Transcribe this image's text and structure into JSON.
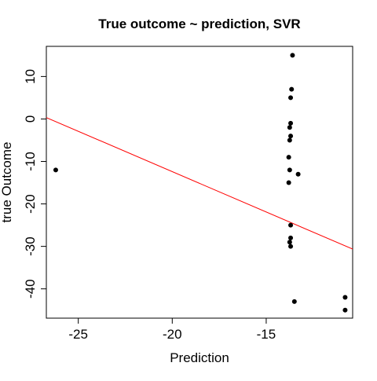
{
  "chart_data": {
    "type": "scatter",
    "title": "True outcome ~ prediction, SVR",
    "xlabel": "Prediction",
    "ylabel": "true Outcome",
    "xlim": [
      -26.7,
      -10.4
    ],
    "ylim": [
      -46.9,
      17.1
    ],
    "xticks": [
      -25,
      -20,
      -15
    ],
    "xtick_labels": [
      "-25",
      "-20",
      "-15"
    ],
    "yticks": [
      -40,
      -30,
      -20,
      -10,
      0,
      10
    ],
    "ytick_labels": [
      "-40",
      "-30",
      "-20",
      "-10",
      "0",
      "10"
    ],
    "grid": false,
    "legend": "none",
    "points": [
      {
        "x": -26.2,
        "y": -12
      },
      {
        "x": -13.6,
        "y": 15
      },
      {
        "x": -13.65,
        "y": 7
      },
      {
        "x": -13.7,
        "y": 5
      },
      {
        "x": -13.7,
        "y": -1
      },
      {
        "x": -13.75,
        "y": -2
      },
      {
        "x": -13.7,
        "y": -4
      },
      {
        "x": -13.75,
        "y": -5
      },
      {
        "x": -13.8,
        "y": -9
      },
      {
        "x": -13.75,
        "y": -12
      },
      {
        "x": -13.3,
        "y": -13
      },
      {
        "x": -13.8,
        "y": -15
      },
      {
        "x": -13.7,
        "y": -25
      },
      {
        "x": -13.7,
        "y": -28
      },
      {
        "x": -13.75,
        "y": -29
      },
      {
        "x": -13.7,
        "y": -30
      },
      {
        "x": -13.5,
        "y": -43
      },
      {
        "x": -10.8,
        "y": -42
      },
      {
        "x": -10.8,
        "y": -45
      }
    ],
    "regression_line": {
      "intercept": -50.4,
      "slope": -1.9
    },
    "point_color": "#000000",
    "line_color": "#ff0000"
  }
}
